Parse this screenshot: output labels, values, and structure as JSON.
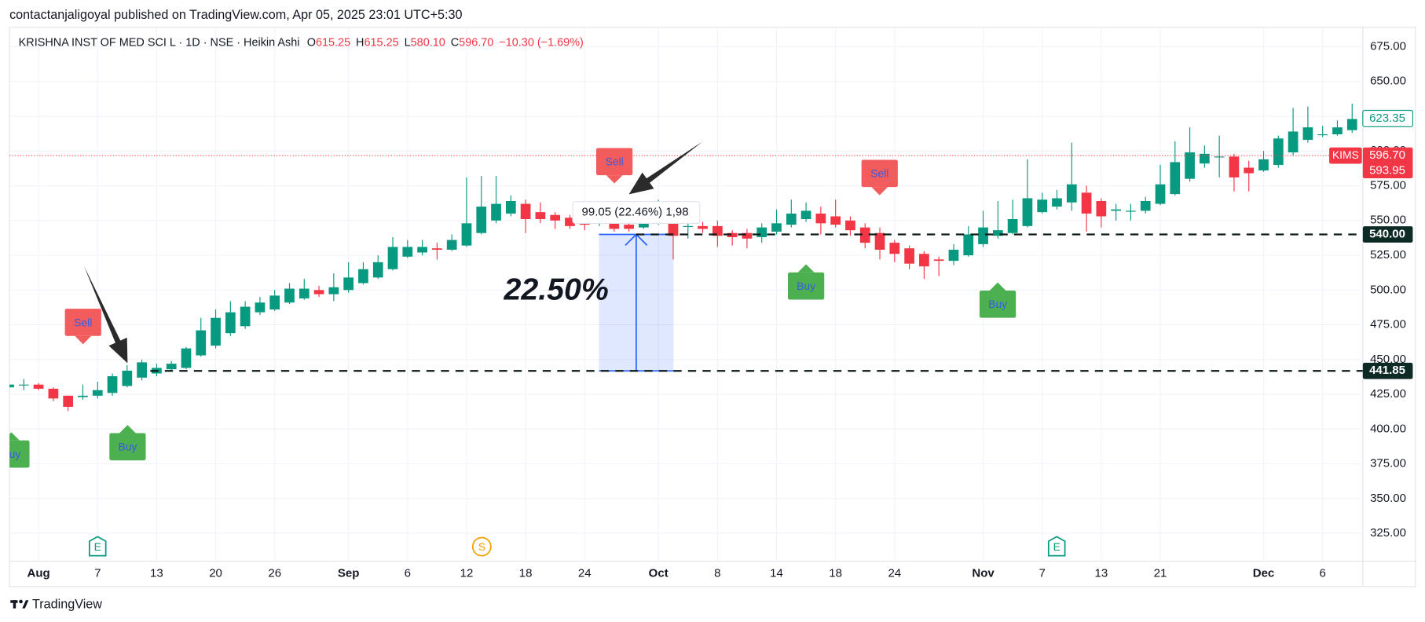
{
  "header": {
    "byline": "contactanjaligoyal published on TradingView.com, Apr 05, 2025 23:01 UTC+5:30"
  },
  "footer": {
    "brand": "TradingView"
  },
  "chart_data": {
    "type": "candlestick",
    "title": "KRISHNA INST OF MED SCI L · 1D · NSE · Heikin Ashi",
    "ohlc": [
      {
        "key": "O",
        "text": "615.25"
      },
      {
        "key": "H",
        "text": "615.25"
      },
      {
        "key": "L",
        "text": "580.10"
      },
      {
        "key": "C",
        "text": "596.70"
      }
    ],
    "change": "−10.30 (−1.69%)",
    "up_color": "#089981",
    "down_color": "#f23645",
    "categories": [
      null,
      null,
      "Aug",
      null,
      null,
      null,
      "7",
      null,
      null,
      null,
      "13",
      null,
      null,
      null,
      "20",
      null,
      null,
      null,
      "26",
      null,
      null,
      null,
      null,
      "Sep",
      null,
      null,
      null,
      "6",
      null,
      null,
      null,
      "12",
      null,
      null,
      null,
      "18",
      null,
      null,
      null,
      "24",
      null,
      null,
      null,
      null,
      "Oct",
      null,
      null,
      null,
      "8",
      null,
      null,
      null,
      "14",
      null,
      null,
      null,
      "18",
      null,
      null,
      null,
      "24",
      null,
      null,
      null,
      null,
      null,
      "Nov",
      null,
      null,
      null,
      "7",
      null,
      null,
      null,
      "13",
      null,
      null,
      null,
      "21",
      null,
      null,
      null,
      null,
      null,
      null,
      "Dec",
      null,
      null,
      null,
      "6",
      null,
      null
    ],
    "open": [
      430,
      432,
      432,
      429,
      424,
      423,
      424,
      426,
      431,
      437,
      440,
      443,
      444,
      453,
      460,
      469,
      474,
      484,
      486,
      491,
      494,
      500,
      497,
      500,
      505,
      509,
      515,
      524,
      527,
      530,
      529,
      532,
      541,
      550,
      555,
      562,
      556,
      554,
      552,
      549,
      548,
      549,
      547,
      545,
      549,
      555,
      546,
      546,
      546,
      541,
      541,
      538,
      542,
      547,
      551,
      555,
      553,
      550,
      545,
      541,
      534,
      530,
      526,
      522,
      521,
      525,
      533,
      539,
      541,
      546,
      556,
      560,
      563,
      570,
      564,
      557,
      557,
      557,
      562,
      569,
      580,
      591,
      596,
      596,
      588,
      586,
      590,
      599,
      608,
      612,
      612,
      615
    ],
    "high": [
      432,
      436,
      433,
      430,
      424,
      432,
      434,
      440,
      446,
      450,
      447,
      449,
      459,
      480,
      486,
      492,
      492,
      495,
      500,
      505,
      508,
      503,
      512,
      520,
      520,
      525,
      538,
      536,
      536,
      534,
      540,
      581,
      582,
      582,
      568,
      565,
      563,
      556,
      554,
      551,
      553,
      551,
      548,
      558,
      565,
      560,
      553,
      549,
      550,
      543,
      544,
      548,
      558,
      565,
      563,
      560,
      565,
      553,
      548,
      545,
      536,
      532,
      528,
      524,
      533,
      546,
      557,
      564,
      565,
      594,
      570,
      572,
      606,
      575,
      566,
      562,
      562,
      567,
      590,
      607,
      617,
      604,
      611,
      598,
      593,
      600,
      611,
      631,
      632,
      618,
      622,
      634
    ],
    "low": [
      428,
      428,
      428,
      420,
      413,
      421,
      422,
      424,
      430,
      435,
      438,
      442,
      443,
      452,
      458,
      467,
      472,
      482,
      485,
      490,
      493,
      495,
      492,
      498,
      504,
      508,
      514,
      523,
      525,
      522,
      528,
      531,
      540,
      548,
      553,
      541,
      548,
      544,
      544,
      543,
      546,
      542,
      542,
      544,
      547,
      522,
      537,
      541,
      531,
      532,
      530,
      534,
      540,
      545,
      549,
      540,
      545,
      539,
      530,
      522,
      520,
      515,
      508,
      510,
      518,
      524,
      531,
      537,
      540,
      545,
      555,
      558,
      557,
      542,
      545,
      550,
      550,
      555,
      561,
      568,
      578,
      588,
      581,
      571,
      571,
      585,
      588,
      597,
      606,
      610,
      611,
      613
    ],
    "close": [
      432,
      432,
      429,
      422,
      416,
      424,
      428,
      438,
      442,
      448,
      444,
      447,
      458,
      471,
      480,
      484,
      488,
      491,
      496,
      501,
      501,
      497,
      502,
      509,
      515,
      520,
      531,
      531,
      531,
      529,
      536,
      548,
      560,
      562,
      564,
      551,
      551,
      550,
      546,
      547,
      549,
      544,
      544,
      552,
      557,
      539,
      546,
      544,
      539,
      538,
      537,
      545,
      548,
      555,
      557,
      548,
      547,
      543,
      534,
      529,
      526,
      519,
      517,
      521,
      529,
      540,
      545,
      543,
      551,
      566,
      565,
      566,
      576,
      555,
      553,
      558,
      557,
      564,
      576,
      592,
      599,
      598,
      596,
      581,
      584,
      594,
      609,
      614,
      617,
      612,
      617,
      623
    ],
    "ylim": [
      305,
      689
    ],
    "yticks": [
      {
        "value": 325,
        "label": "325.00"
      },
      {
        "value": 350,
        "label": "350.00"
      },
      {
        "value": 375,
        "label": "375.00"
      },
      {
        "value": 400,
        "label": "400.00"
      },
      {
        "value": 425,
        "label": "425.00"
      },
      {
        "value": 450,
        "label": "450.00"
      },
      {
        "value": 475,
        "label": "475.00"
      },
      {
        "value": 500,
        "label": "500.00"
      },
      {
        "value": 525,
        "label": "525.00"
      },
      {
        "value": 550,
        "label": "550.00"
      },
      {
        "value": 575,
        "label": "575.00"
      },
      {
        "value": 600,
        "label": "600.00"
      },
      {
        "value": 625,
        "label": "625.00"
      },
      {
        "value": 650,
        "label": "650.00"
      },
      {
        "value": 675,
        "label": "675.00"
      }
    ],
    "grid": true,
    "hlines": [
      {
        "value": 540,
        "label": "540.00"
      },
      {
        "value": 441.85,
        "label": "441.85"
      }
    ],
    "last_ha": 623.35,
    "symbol": "KIMS",
    "last": {
      "value": 596.7,
      "label": "596.70"
    },
    "prev": {
      "value": 593.95,
      "label": "593.95"
    },
    "signals": [
      "Buy",
      "Sell",
      "Buy",
      "Sell",
      "Buy",
      "Sell",
      "Buy"
    ],
    "events": [
      "E",
      "S",
      "E"
    ],
    "measure_label": "99.05 (22.46%) 1,98",
    "annotation": "22.50%"
  }
}
